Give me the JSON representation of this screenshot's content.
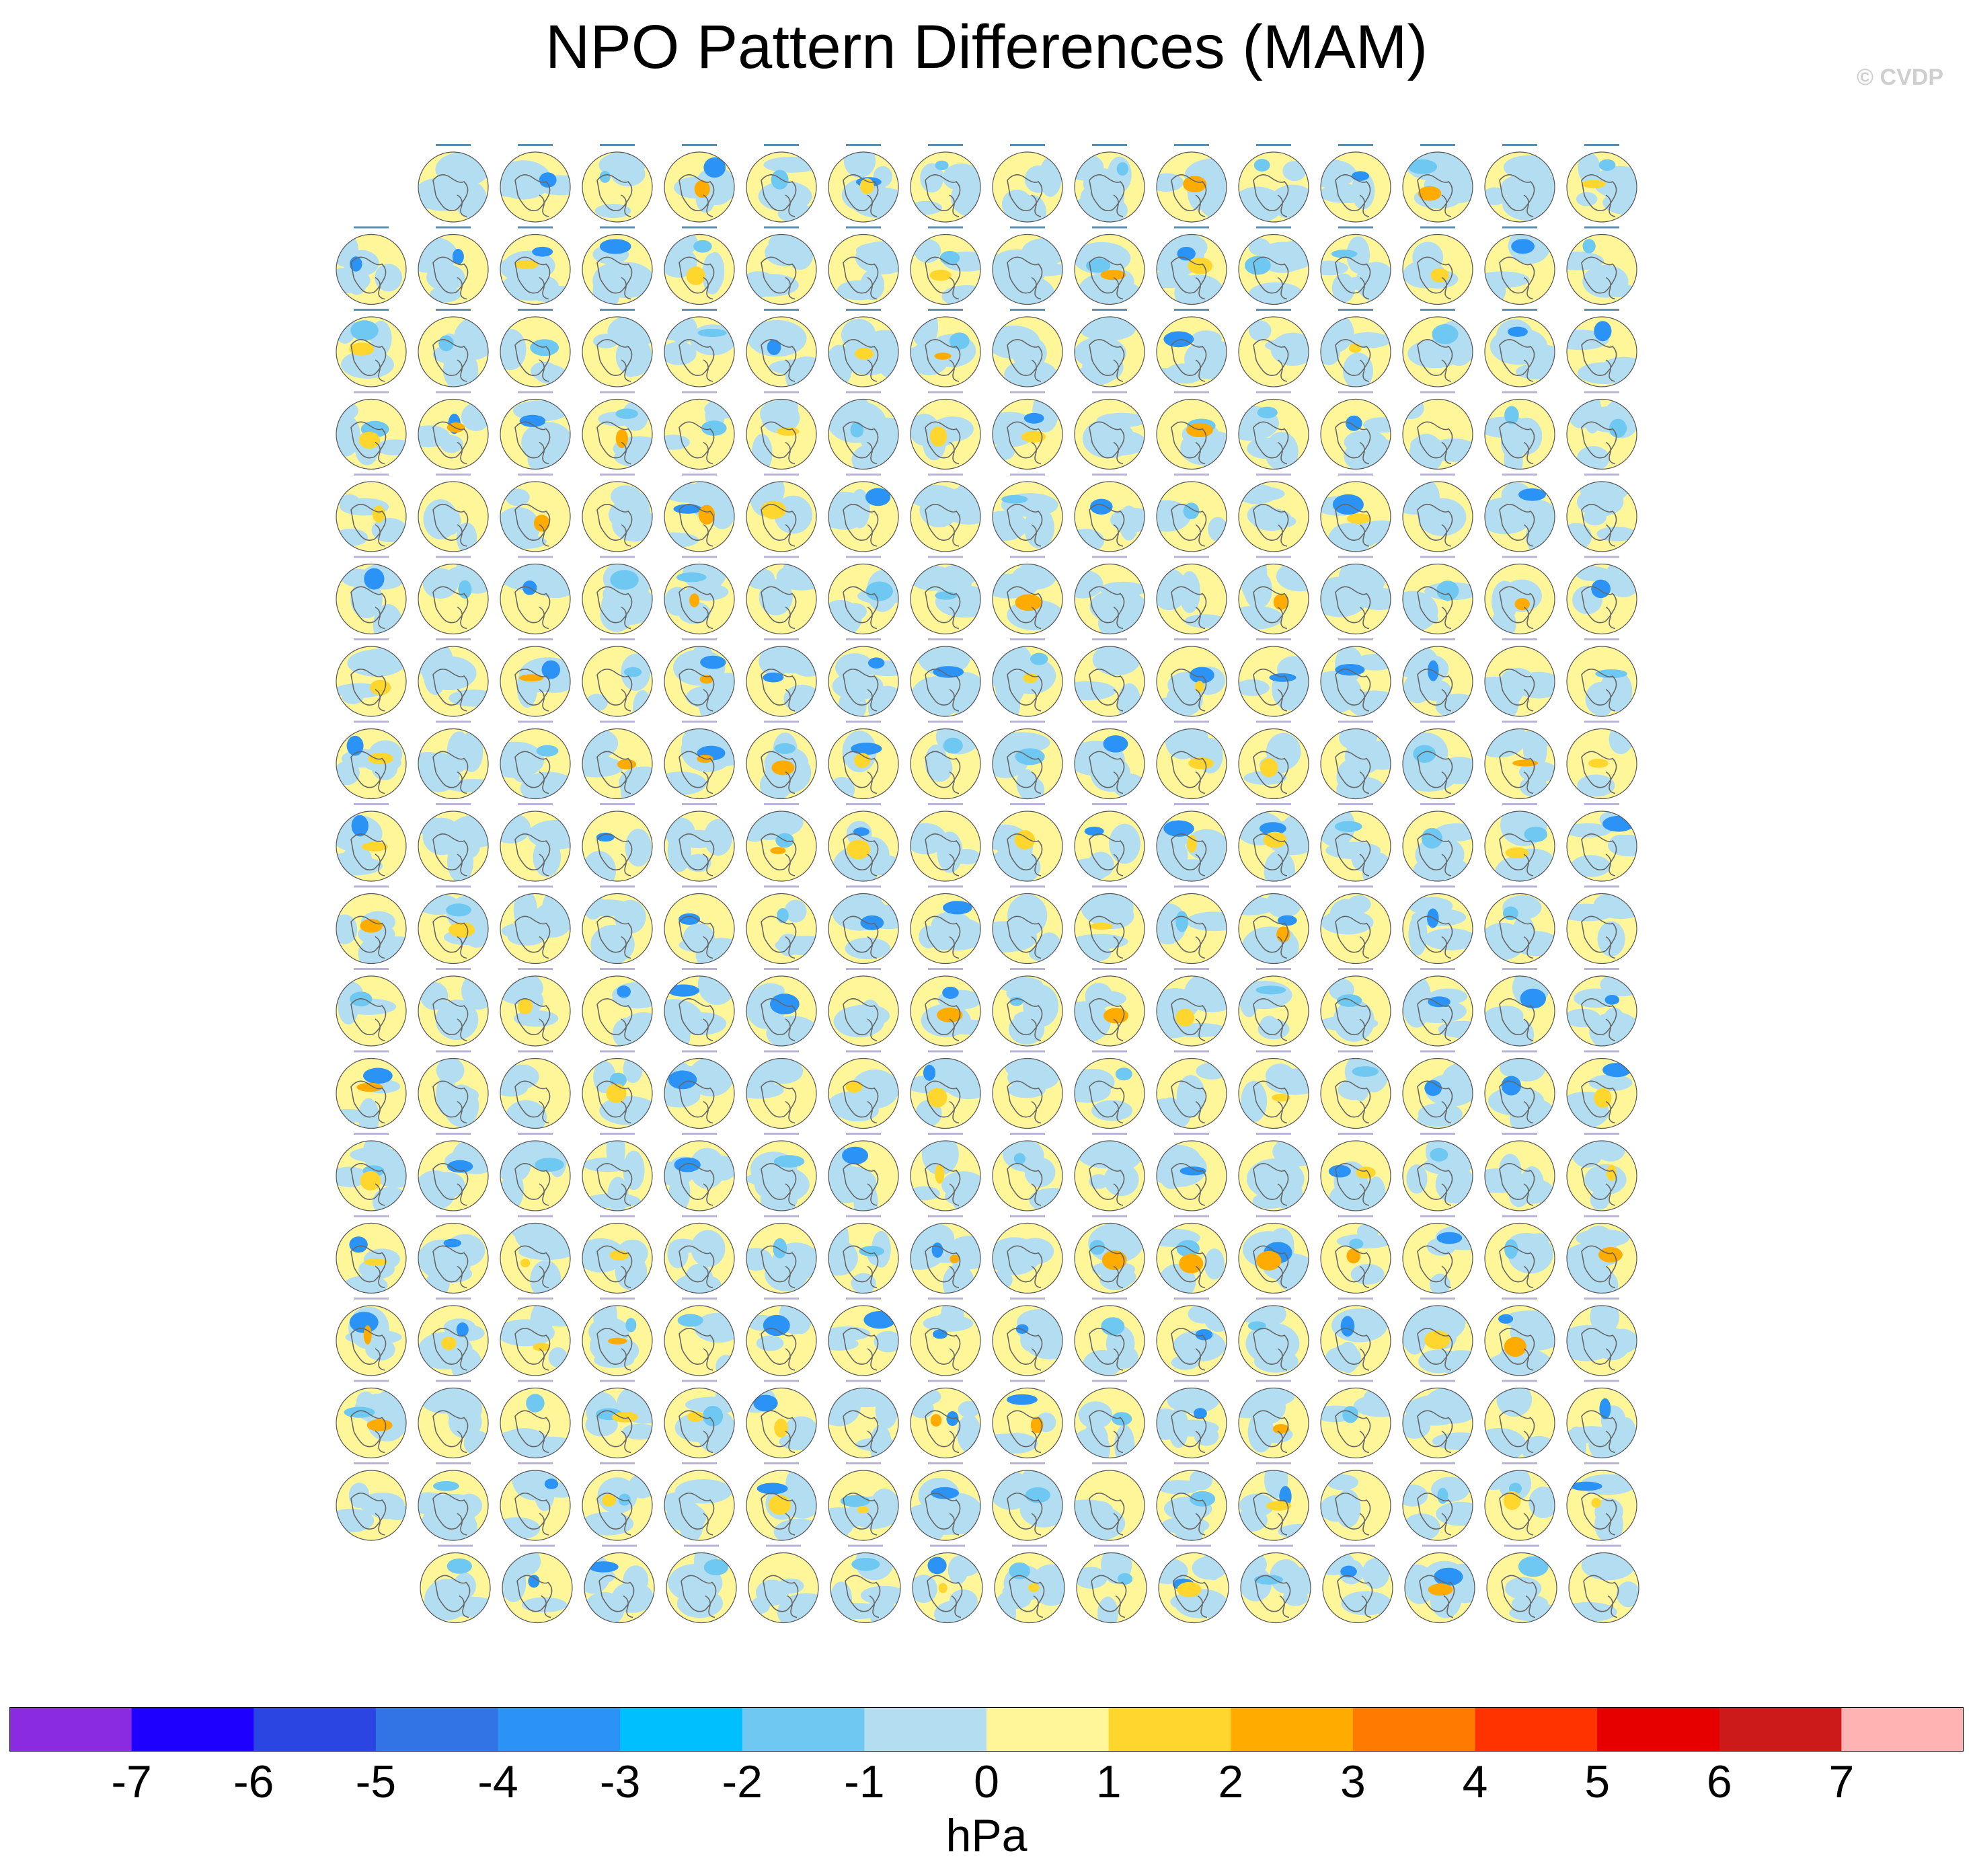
{
  "title": "NPO Pattern Differences (MAM)",
  "credit": "© CVDP",
  "colorbar": {
    "units": "hPa",
    "tick_labels": [
      "-7",
      "-6",
      "-5",
      "-4",
      "-3",
      "-2",
      "-1",
      "0",
      "1",
      "2",
      "3",
      "4",
      "5",
      "6",
      "7"
    ],
    "colors": [
      "#8a2be2",
      "#1e00ff",
      "#2b45e3",
      "#3273e6",
      "#2a93f5",
      "#00bfff",
      "#6fc8f2",
      "#b3def2",
      "#fff69a",
      "#ffd62e",
      "#ffab00",
      "#ff7a00",
      "#ff3300",
      "#e60000",
      "#cc1a1a",
      "#ffb3b3"
    ]
  },
  "chart_data": {
    "type": "heatmap",
    "title": "NPO Pattern Differences (MAM)",
    "description_of_grid": "Small-multiple polar stereographic sea-level-pressure difference maps",
    "rows": [
      15,
      16,
      16,
      16,
      16,
      16,
      16,
      16,
      16,
      16,
      16,
      16,
      16,
      16,
      16,
      16,
      16,
      15
    ],
    "panel_count": 286,
    "colorbar_range": [
      -7,
      7
    ],
    "colorbar_interval": 1,
    "units": "hPa"
  }
}
